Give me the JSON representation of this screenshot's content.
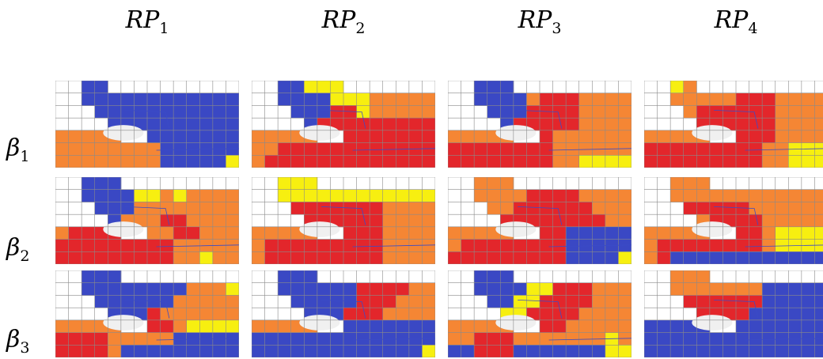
{
  "columns": [
    {
      "base": "RP",
      "sub": "1"
    },
    {
      "base": "RP",
      "sub": "2"
    },
    {
      "base": "RP",
      "sub": "3"
    },
    {
      "base": "RP",
      "sub": "4"
    }
  ],
  "rows": [
    {
      "base": "β",
      "sub": "1"
    },
    {
      "base": "β",
      "sub": "2"
    },
    {
      "base": "β",
      "sub": "3"
    }
  ],
  "colors": {
    "B": "#3a48c4",
    "O": "#f58634",
    "R": "#e3262b",
    "Y": "#f7ef10",
    "grid": "#8a8a8a",
    "line": "#3b4bc7"
  },
  "panels": [
    [
      [
        "  BB          ",
        "  BBBBBBBBBBBB",
        "   BBBBBBBBBBB",
        "    BBBBBBBBBB",
        "OOOOO  BBBBBBB",
        "OOOOOOOOBBBBBB",
        "OOOOOOOOBBBBBY"
      ],
      [
        "  BBYYY       ",
        "  BBBBYYYOOOOO",
        "   BBBRRYOOOOO",
        "    BRRRRRRRRR",
        "OOOOO  RRRRRRR",
        "OORRRRRRRRRRRR",
        "ORRRRRRRRRRRRR"
      ],
      [
        "  BBB         ",
        "  BBBBORRROOOO",
        "   BBBRRRROOOO",
        "    BRRRRROOOO",
        "OOOOO  ROOOOOO",
        "RRRRRRRROOOOOO",
        "RRRRRRRROOYYYY"
      ],
      [
        "  YO          ",
        "  OOOOORRROOOO",
        "   ORRRRRROOOO",
        "    RRRRRROOOO",
        "OOOOO  RRROOOO",
        "RRRRRRRRROOYYY",
        "RRRRRRRRROOYYY"
      ]
    ],
    [
      [
        "  BBB         ",
        "  BBBBYYOYOOOO",
        "   BBBOOOOOOOO",
        "    BOOORROOOO",
        "ORRRR  OORROOO",
        "RRRRRRRRROOOOO",
        "RRRRRRRRROOYOO"
      ],
      [
        "  YYY         ",
        "  YYYYYYYYYYYY",
        "   RRRRRRROOOO",
        "    RRRRRROOOO",
        "OOOOO  RRROOOO",
        "ORRRRRRRRROOOO",
        "ORRRRRRRRROOOO"
      ],
      [
        "  OOO         ",
        "  OOOORRRROOOO",
        "   OORRRRRROOO",
        "    RRRRRRRROO",
        "OOOOO  RRBBBBB",
        "ORRRRRRRRBBBBB",
        "RRRRRRRRRBBBBY"
      ],
      [
        "  OOO         ",
        "  OOOOOOOOOOOO",
        "   RRRRROOOOOO",
        "    ORRRROOOOO",
        "OOOOO  RROYYYY",
        "ORRRRRRRROYYYY",
        "ORBBBBBBBBBBBB"
      ]
    ],
    [
      [
        "  BBB         ",
        "  BBBBBBBBOOOY",
        "   BBBBBBOOOOO",
        "    BBBROOOOOO",
        "OOOOO  RROYYYY",
        "RRRROOOOOBBBBB",
        "RRRROBBBBBBBBB"
      ],
      [
        "  BBB         ",
        "  BBBBBBRRRROO",
        "   BBBBBRRROOO",
        "    BBBRRROOOO",
        "OOOOO  BBBBBBB",
        "BBBBBBBBBBBBBB",
        "BBBBBBBBBBBBBY"
      ],
      [
        "  BBB         ",
        "  BBBBYYRRROOO",
        "   BBYYRRRROOO",
        "    YYRRRROOOO",
        "OOOOO  RROOOOO",
        "OORRROOOOOOOYO",
        "BBRRRBBBBBBBYY"
      ],
      [
        "  OOO         ",
        "  OOOOOOOBBBBB",
        "   RRRRRRBBBBB",
        "    RRRRBBBBBB",
        "BBBBB  BBBBBBB",
        "BBBBBBBBBBBBBB",
        "BBBBBBBBBBBBBB"
      ]
    ]
  ]
}
